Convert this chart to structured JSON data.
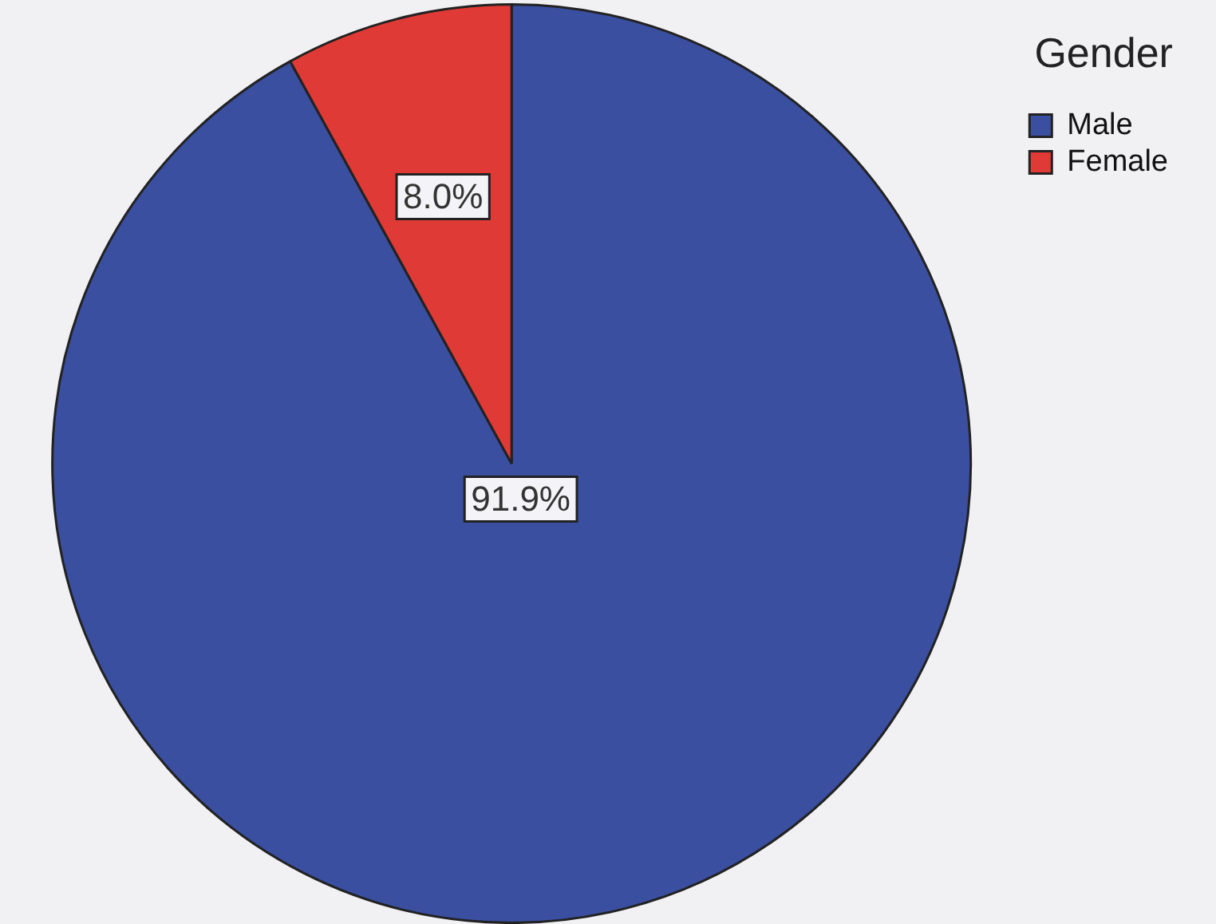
{
  "chart_data": {
    "type": "pie",
    "categories": [
      "Male",
      "Female"
    ],
    "values": [
      91.9,
      8.0
    ],
    "colors": [
      "#3a4fa0",
      "#e03a36"
    ],
    "value_labels": [
      "91.9%",
      "8.0%"
    ],
    "legend_title": "Gender",
    "legend": "top right"
  }
}
